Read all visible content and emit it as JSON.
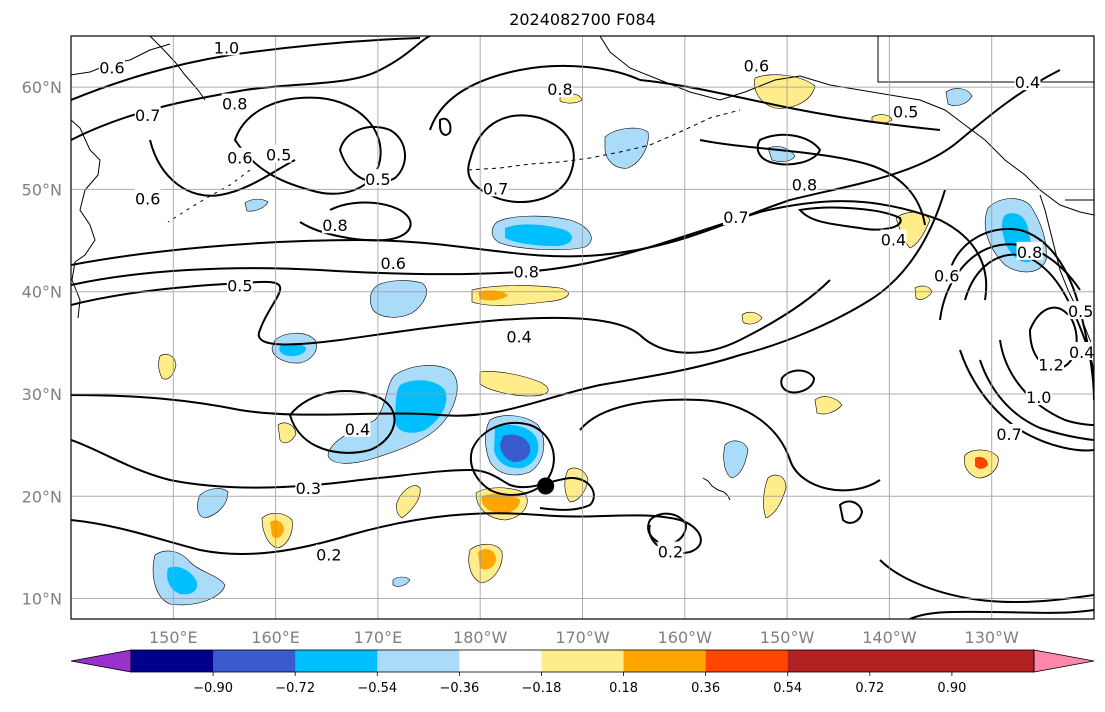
{
  "title": "2024082700 F084",
  "map": {
    "projection": "PlateCarree",
    "lon_range": [
      140,
      240
    ],
    "lat_range": [
      8,
      65
    ],
    "gridlines": true,
    "lat_labels": [
      {
        "lat": 10,
        "label": "10°N"
      },
      {
        "lat": 20,
        "label": "20°N"
      },
      {
        "lat": 30,
        "label": "30°N"
      },
      {
        "lat": 40,
        "label": "40°N"
      },
      {
        "lat": 50,
        "label": "50°N"
      },
      {
        "lat": 60,
        "label": "60°N"
      }
    ],
    "lon_labels": [
      {
        "lon": 150,
        "label": "150°E"
      },
      {
        "lon": 160,
        "label": "160°E"
      },
      {
        "lon": 170,
        "label": "170°E"
      },
      {
        "lon": 180,
        "label": "180°W"
      },
      {
        "lon": 190,
        "label": "170°W"
      },
      {
        "lon": 200,
        "label": "160°W"
      },
      {
        "lon": 210,
        "label": "150°W"
      },
      {
        "lon": 220,
        "label": "140°W"
      },
      {
        "lon": 230,
        "label": "130°W"
      }
    ],
    "storm_marker": {
      "lon": 186.4,
      "lat": 21.0,
      "color": "#000000"
    }
  },
  "contour_labels": [
    {
      "text": "1.0",
      "lon": 155.2,
      "lat": 63.8
    },
    {
      "text": "0.6",
      "lon": 144.0,
      "lat": 61.8
    },
    {
      "text": "0.8",
      "lon": 156.0,
      "lat": 58.3
    },
    {
      "text": "0.7",
      "lon": 147.5,
      "lat": 57.2
    },
    {
      "text": "0.5",
      "lon": 160.3,
      "lat": 53.3
    },
    {
      "text": "0.6",
      "lon": 156.5,
      "lat": 53.0
    },
    {
      "text": "0.5",
      "lon": 170.0,
      "lat": 50.9
    },
    {
      "text": "0.6",
      "lon": 147.5,
      "lat": 49.0
    },
    {
      "text": "0.8",
      "lon": 165.8,
      "lat": 46.4
    },
    {
      "text": "0.7",
      "lon": 181.5,
      "lat": 50.0
    },
    {
      "text": "0.8",
      "lon": 187.8,
      "lat": 59.7
    },
    {
      "text": "0.6",
      "lon": 171.5,
      "lat": 42.7
    },
    {
      "text": "0.8",
      "lon": 184.5,
      "lat": 41.9
    },
    {
      "text": "0.5",
      "lon": 156.5,
      "lat": 40.5
    },
    {
      "text": "0.4",
      "lon": 183.8,
      "lat": 35.5
    },
    {
      "text": "0.4",
      "lon": 168.0,
      "lat": 26.5
    },
    {
      "text": "0.3",
      "lon": 163.2,
      "lat": 20.7
    },
    {
      "text": "0.2",
      "lon": 165.2,
      "lat": 14.2
    },
    {
      "text": "0.2",
      "lon": 198.6,
      "lat": 14.5
    },
    {
      "text": "0.5",
      "lon": 221.6,
      "lat": 57.5
    },
    {
      "text": "0.6",
      "lon": 207.0,
      "lat": 62.0
    },
    {
      "text": "0.8",
      "lon": 211.7,
      "lat": 50.4
    },
    {
      "text": "0.7",
      "lon": 205.0,
      "lat": 47.2
    },
    {
      "text": "0.4",
      "lon": 220.4,
      "lat": 45.0
    },
    {
      "text": "0.6",
      "lon": 225.6,
      "lat": 41.5
    },
    {
      "text": "0.8",
      "lon": 233.7,
      "lat": 43.8
    },
    {
      "text": "0.4",
      "lon": 233.5,
      "lat": 60.4
    },
    {
      "text": "1.2",
      "lon": 235.8,
      "lat": 32.8
    },
    {
      "text": "1.0",
      "lon": 234.6,
      "lat": 29.6
    },
    {
      "text": "0.7",
      "lon": 231.7,
      "lat": 26.0
    },
    {
      "text": "0.5",
      "lon": 238.7,
      "lat": 38.0
    },
    {
      "text": "0.4",
      "lon": 238.8,
      "lat": 34.0
    }
  ],
  "colorbar": {
    "extend": "both",
    "boundaries": [
      -0.9,
      -0.72,
      -0.54,
      -0.36,
      -0.18,
      0.18,
      0.36,
      0.54,
      0.72,
      0.9
    ],
    "tick_labels": [
      "−0.90",
      "−0.72",
      "−0.54",
      "−0.36",
      "−0.18",
      "0.18",
      "0.36",
      "0.54",
      "0.72",
      "0.90"
    ],
    "colors": [
      "#9932cc",
      "#00008b",
      "#3a5ad0",
      "#00bfff",
      "#aadcfa",
      "#ffffff",
      "#ffec8b",
      "#ffa500",
      "#ff4500",
      "#b22222",
      "#ff88aa"
    ]
  }
}
